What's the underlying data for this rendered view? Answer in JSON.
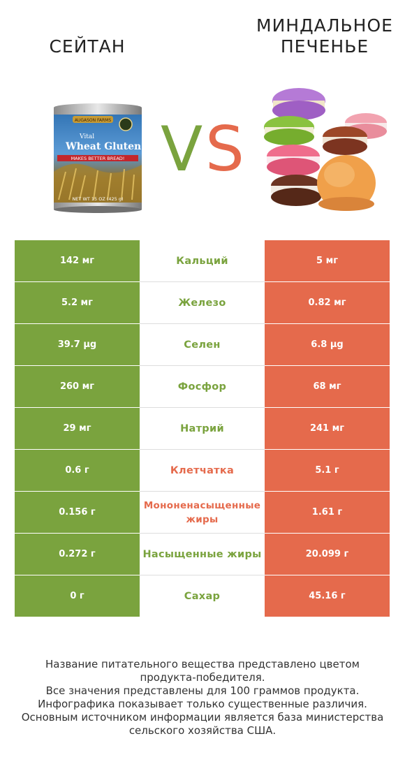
{
  "header": {
    "left_title": "СЕЙТАН",
    "right_title_line1": "МИНДАЛЬНОЕ",
    "right_title_line2": "ПЕЧЕНЬЕ",
    "vs_v": "V",
    "vs_s": "S"
  },
  "left_product_label": {
    "brand": "AUGASON FARMS",
    "line1": "Vital",
    "line2": "Wheat Gluten",
    "tagline": "MAKES BETTER BREAD!",
    "net_wt": "NET WT 15 OZ (425 g)"
  },
  "colors": {
    "winner_left": "#7aa33e",
    "winner_right": "#e56a4c"
  },
  "rows": [
    {
      "left": "142 мг",
      "name": "Кальций",
      "right": "5 мг",
      "winner_color": "#7aa33e"
    },
    {
      "left": "5.2 мг",
      "name": "Железо",
      "right": "0.82 мг",
      "winner_color": "#7aa33e"
    },
    {
      "left": "39.7 µg",
      "name": "Селен",
      "right": "6.8 µg",
      "winner_color": "#7aa33e"
    },
    {
      "left": "260 мг",
      "name": "Фосфор",
      "right": "68 мг",
      "winner_color": "#7aa33e"
    },
    {
      "left": "29 мг",
      "name": "Натрий",
      "right": "241 мг",
      "winner_color": "#7aa33e"
    },
    {
      "left": "0.6 г",
      "name": "Клетчатка",
      "right": "5.1 г",
      "winner_color": "#e56a4c"
    },
    {
      "left": "0.156 г",
      "name": "Мононенасыщенные жиры",
      "right": "1.61 г",
      "winner_color": "#e56a4c"
    },
    {
      "left": "0.272 г",
      "name": "Насыщенные жиры",
      "right": "20.099 г",
      "winner_color": "#7aa33e"
    },
    {
      "left": "0 г",
      "name": "Сахар",
      "right": "45.16 г",
      "winner_color": "#7aa33e"
    }
  ],
  "footer": {
    "line1": "Название питательного вещества представлено цветом",
    "line2": "продукта-победителя.",
    "line3": "Все значения представлены для 100 граммов продукта.",
    "line4": "Инфографика показывает только существенные различия.",
    "line5": "Основным источником информации является база министерства",
    "line6": "сельского хозяйства США."
  }
}
